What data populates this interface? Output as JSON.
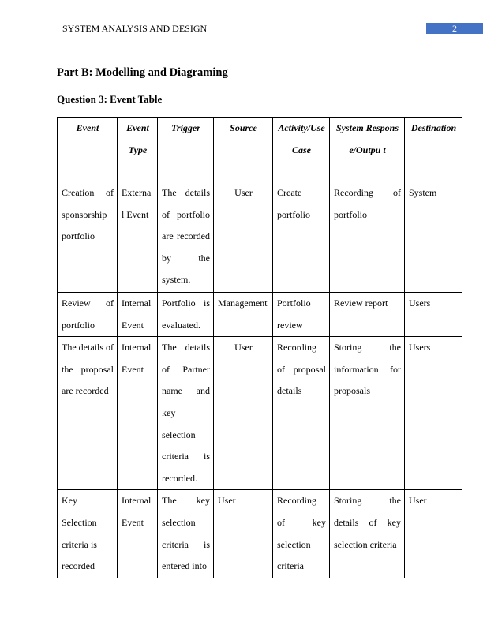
{
  "header": {
    "running_title": "SYSTEM ANALYSIS AND DESIGN",
    "page_number": "2",
    "accent_color": "#4472C4"
  },
  "part_heading": "Part B: Modelling and Diagraming",
  "question_heading": "Question 3: Event Table",
  "event_table": {
    "columns": [
      "Event",
      "Event Type",
      "Trigger",
      "Source",
      "Activity/Use Case",
      "System Response/Outpu t",
      "Destination"
    ],
    "rows": [
      [
        "Creation of sponsorship portfolio",
        "Externa l Event",
        "The details of portfolio are recorded by the system.",
        "User",
        "Create portfolio",
        "Recording of portfolio",
        "System"
      ],
      [
        "Review of portfolio",
        "Internal Event",
        "Portfolio is evaluated.",
        "Management",
        "Portfolio review",
        "Review report",
        "Users"
      ],
      [
        "The details of the proposal are recorded",
        "Internal Event",
        "The details of Partner name and key selection criteria is recorded.",
        "User",
        "Recording of proposal details",
        "Storing the information for proposals",
        "Users"
      ],
      [
        "Key Selection criteria is recorded",
        "Internal Event",
        "The key selection criteria is entered into",
        "User",
        "Recording of key selection criteria",
        "Storing the details of key selection criteria",
        "User"
      ]
    ]
  }
}
